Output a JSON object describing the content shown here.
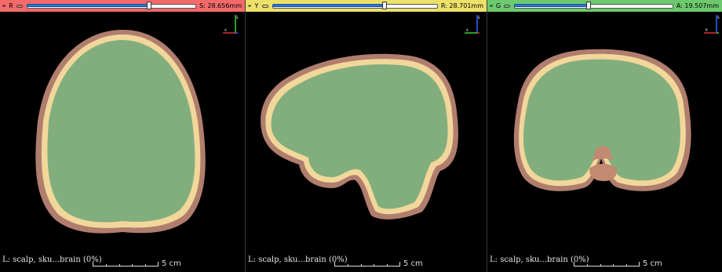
{
  "views": [
    {
      "id": "red",
      "color": "#f26a6a",
      "letter": "R",
      "slider_fraction": 0.72,
      "offset_label": "S: 28.656mm",
      "bottom_label": "L: scalp, sku...brain (0%)",
      "scale_label": "5 cm"
    },
    {
      "id": "yellow",
      "color": "#ece06a",
      "letter": "Y",
      "slider_fraction": 0.68,
      "offset_label": "R: 28.701mm",
      "bottom_label": "L: scalp, sku...brain (0%)",
      "scale_label": "5 cm"
    },
    {
      "id": "green",
      "color": "#6dc96d",
      "letter": "G",
      "slider_fraction": 0.47,
      "offset_label": "A: 19.507mm",
      "bottom_label": "L: scalp, sku...brain (0%)",
      "scale_label": "5 cm"
    }
  ],
  "segment_colors": {
    "scalp": "#b07e6e",
    "skull": "#f2d79a",
    "brain": "#82ae7e",
    "ventricle": "#c28a70"
  },
  "icons": {
    "pin": "pin-icon",
    "link": "link-icon",
    "axes": "orientation-axes-icon"
  }
}
